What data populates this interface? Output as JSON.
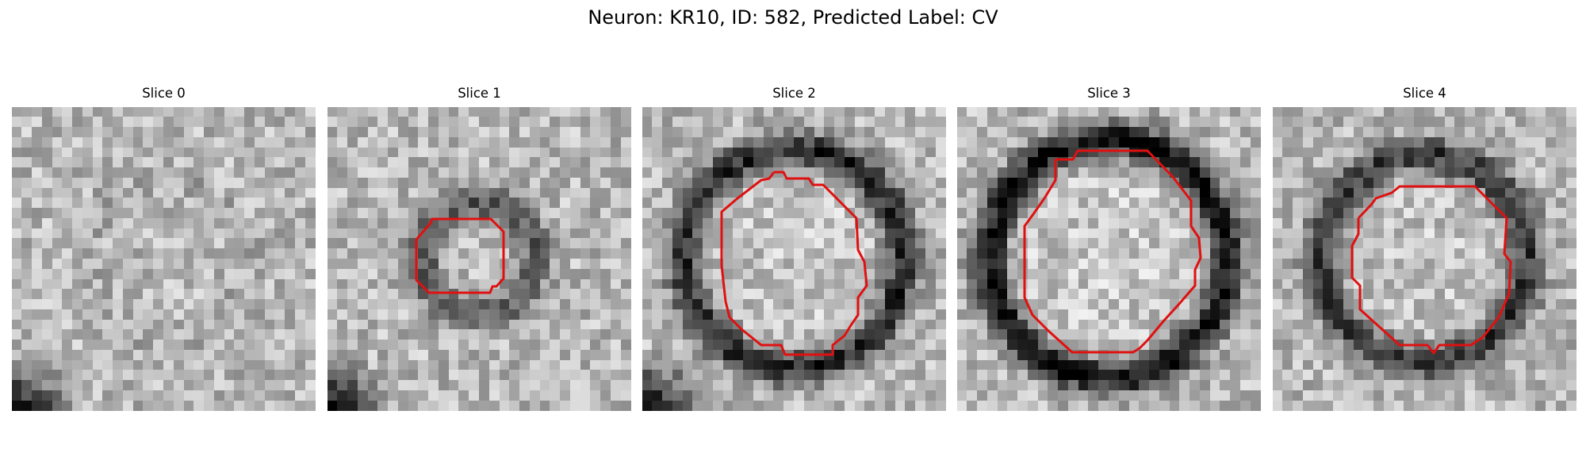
{
  "figure": {
    "title": "Neuron: KR10, ID: 582, Predicted Label: CV"
  },
  "outline_color": "#e01010",
  "panels": [
    {
      "title": "Slice 0",
      "has_outline": false,
      "ring_strength": 0.05,
      "ring_radius": 0.26,
      "seed": 11
    },
    {
      "title": "Slice 1",
      "has_outline": true,
      "ring_strength": 0.35,
      "ring_radius": 0.18,
      "seed": 23
    },
    {
      "title": "Slice 2",
      "has_outline": true,
      "ring_strength": 0.55,
      "ring_radius": 0.36,
      "seed": 37
    },
    {
      "title": "Slice 3",
      "has_outline": true,
      "ring_strength": 0.65,
      "ring_radius": 0.39,
      "seed": 41
    },
    {
      "title": "Slice 4",
      "has_outline": true,
      "ring_strength": 0.5,
      "ring_radius": 0.34,
      "seed": 53
    }
  ]
}
